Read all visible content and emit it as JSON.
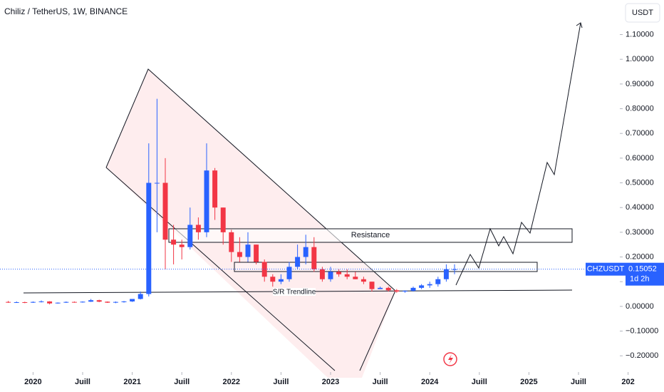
{
  "chart_data": {
    "type": "candlestick",
    "title": "Chiliz / TetherUS, 1W, BINANCE",
    "currency": "USDT",
    "symbol": "CHZUSDT",
    "last_price": 0.15052,
    "countdown": "1d 2h",
    "annotations": [
      "Resistance",
      "S/R Trendline"
    ],
    "up_color": "#2962ff",
    "down_color": "#f23645",
    "x": [
      "2019-10",
      "2019-11",
      "2019-12",
      "2020-01",
      "2020-02",
      "2020-03",
      "2020-04",
      "2020-05",
      "2020-06",
      "2020-07",
      "2020-08",
      "2020-09",
      "2020-10",
      "2020-11",
      "2020-12",
      "2021-01",
      "2021-02",
      "2021-03",
      "2021-04",
      "2021-05",
      "2021-06",
      "2021-07",
      "2021-08",
      "2021-09",
      "2021-10",
      "2021-11",
      "2021-12",
      "2022-01",
      "2022-02",
      "2022-03",
      "2022-04",
      "2022-05",
      "2022-06",
      "2022-07",
      "2022-08",
      "2022-09",
      "2022-10",
      "2022-11",
      "2022-12",
      "2023-01",
      "2023-02",
      "2023-03",
      "2023-04",
      "2023-05",
      "2023-06",
      "2023-07",
      "2023-08",
      "2023-09",
      "2023-10",
      "2023-11",
      "2023-12",
      "2024-01",
      "2024-02",
      "2024-03",
      "2024-04"
    ],
    "open": [
      0.018,
      0.016,
      0.017,
      0.015,
      0.018,
      0.02,
      0.012,
      0.015,
      0.018,
      0.016,
      0.019,
      0.025,
      0.019,
      0.015,
      0.018,
      0.02,
      0.03,
      0.05,
      0.5,
      0.5,
      0.27,
      0.25,
      0.24,
      0.33,
      0.3,
      0.55,
      0.4,
      0.3,
      0.22,
      0.2,
      0.25,
      0.18,
      0.12,
      0.1,
      0.11,
      0.16,
      0.2,
      0.24,
      0.15,
      0.11,
      0.14,
      0.13,
      0.12,
      0.11,
      0.1,
      0.07,
      0.075,
      0.065,
      0.06,
      0.063,
      0.075,
      0.085,
      0.09,
      0.11,
      0.15
    ],
    "high": [
      0.022,
      0.02,
      0.019,
      0.02,
      0.024,
      0.021,
      0.016,
      0.02,
      0.02,
      0.02,
      0.03,
      0.027,
      0.02,
      0.02,
      0.022,
      0.025,
      0.06,
      0.66,
      0.84,
      0.6,
      0.33,
      0.27,
      0.4,
      0.36,
      0.66,
      0.56,
      0.4,
      0.31,
      0.28,
      0.3,
      0.25,
      0.19,
      0.13,
      0.13,
      0.18,
      0.25,
      0.29,
      0.28,
      0.16,
      0.16,
      0.15,
      0.15,
      0.14,
      0.12,
      0.1,
      0.08,
      0.08,
      0.07,
      0.065,
      0.08,
      0.09,
      0.1,
      0.12,
      0.17,
      0.17
    ],
    "low": [
      0.014,
      0.014,
      0.013,
      0.014,
      0.016,
      0.008,
      0.011,
      0.014,
      0.015,
      0.015,
      0.018,
      0.017,
      0.014,
      0.013,
      0.015,
      0.018,
      0.028,
      0.04,
      0.3,
      0.15,
      0.17,
      0.19,
      0.23,
      0.27,
      0.28,
      0.35,
      0.25,
      0.18,
      0.18,
      0.18,
      0.17,
      0.1,
      0.08,
      0.09,
      0.1,
      0.15,
      0.17,
      0.14,
      0.1,
      0.1,
      0.12,
      0.11,
      0.11,
      0.09,
      0.06,
      0.07,
      0.06,
      0.055,
      0.055,
      0.06,
      0.07,
      0.075,
      0.08,
      0.1,
      0.13
    ],
    "close": [
      0.016,
      0.017,
      0.015,
      0.018,
      0.02,
      0.012,
      0.015,
      0.018,
      0.016,
      0.019,
      0.025,
      0.019,
      0.015,
      0.018,
      0.02,
      0.03,
      0.05,
      0.5,
      0.5,
      0.27,
      0.25,
      0.24,
      0.33,
      0.3,
      0.55,
      0.4,
      0.3,
      0.22,
      0.2,
      0.25,
      0.18,
      0.12,
      0.1,
      0.11,
      0.16,
      0.2,
      0.24,
      0.15,
      0.11,
      0.14,
      0.13,
      0.12,
      0.11,
      0.1,
      0.07,
      0.075,
      0.065,
      0.06,
      0.063,
      0.075,
      0.085,
      0.09,
      0.11,
      0.15,
      0.15052
    ],
    "xlim": [
      "2019-09",
      "2025-12"
    ],
    "xticks": [
      {
        "value": "2020-01",
        "label": "2020"
      },
      {
        "value": "2020-07",
        "label": "Juill"
      },
      {
        "value": "2021-01",
        "label": "2021"
      },
      {
        "value": "2021-07",
        "label": "Juill"
      },
      {
        "value": "2022-01",
        "label": "2022"
      },
      {
        "value": "2022-07",
        "label": "Juill"
      },
      {
        "value": "2023-01",
        "label": "2023"
      },
      {
        "value": "2023-07",
        "label": "Juill"
      },
      {
        "value": "2024-01",
        "label": "2024"
      },
      {
        "value": "2024-07",
        "label": "Juill"
      },
      {
        "value": "2025-01",
        "label": "2025"
      },
      {
        "value": "2025-07",
        "label": "Juill"
      },
      {
        "value": "2026-01",
        "label": "202"
      }
    ],
    "ylim": [
      -0.26,
      1.24
    ],
    "yticks": [
      {
        "value": 1.1,
        "label": "1.10000"
      },
      {
        "value": 1.0,
        "label": "1.00000"
      },
      {
        "value": 0.9,
        "label": "0.90000"
      },
      {
        "value": 0.8,
        "label": "0.80000"
      },
      {
        "value": 0.7,
        "label": "0.70000"
      },
      {
        "value": 0.6,
        "label": "0.60000"
      },
      {
        "value": 0.5,
        "label": "0.50000"
      },
      {
        "value": 0.4,
        "label": "0.40000"
      },
      {
        "value": 0.3,
        "label": "0.30000"
      },
      {
        "value": 0.2,
        "label": "0.20000"
      },
      {
        "value": 0.1,
        "label": "0.10000"
      },
      {
        "value": 0,
        "label": "0.00000"
      },
      {
        "value": -0.1,
        "label": "−0.10000"
      },
      {
        "value": -0.2,
        "label": "−0.20000"
      }
    ]
  }
}
